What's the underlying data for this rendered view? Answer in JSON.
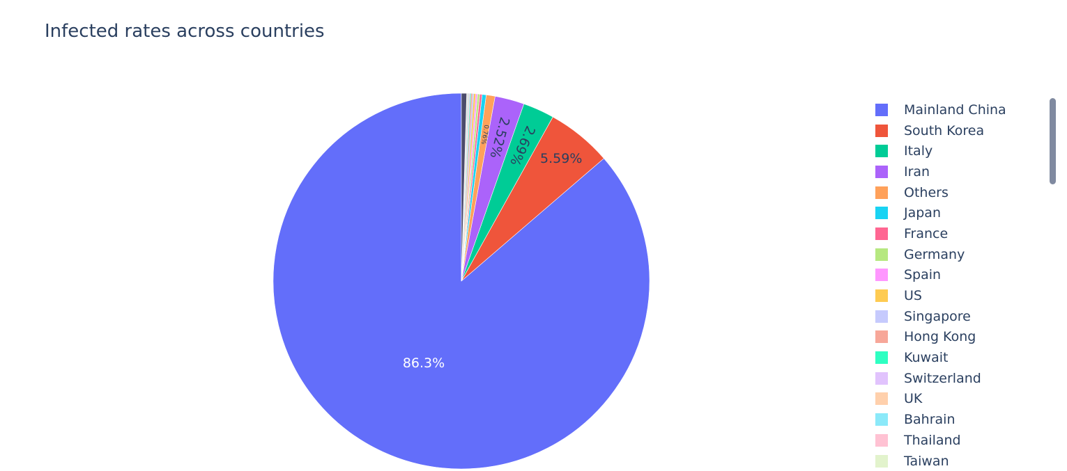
{
  "title": "Infected rates across countries",
  "chart_data": {
    "type": "pie",
    "title": "Infected rates across countries",
    "slices": [
      {
        "label": "Mainland China",
        "percent": 86.3,
        "color": "#636efa",
        "text": "86.3%"
      },
      {
        "label": "South Korea",
        "percent": 5.59,
        "color": "#ef553b",
        "text": "5.59%"
      },
      {
        "label": "Italy",
        "percent": 2.69,
        "color": "#00cc96",
        "text": "2.69%"
      },
      {
        "label": "Iran",
        "percent": 2.52,
        "color": "#ab63fa",
        "text": "2.52%"
      },
      {
        "label": "Others",
        "percent": 0.76,
        "color": "#ffa15a",
        "text": "0.76%"
      },
      {
        "label": "Japan",
        "percent": 0.35,
        "color": "#19d3f3",
        "text": ""
      },
      {
        "label": "France",
        "percent": 0.2,
        "color": "#ff6692",
        "text": ""
      },
      {
        "label": "Germany",
        "percent": 0.19,
        "color": "#b6e880",
        "text": ""
      },
      {
        "label": "Spain",
        "percent": 0.16,
        "color": "#ff97ff",
        "text": ""
      },
      {
        "label": "US",
        "percent": 0.15,
        "color": "#fecb52",
        "text": ""
      },
      {
        "label": "Singapore",
        "percent": 0.13,
        "color": "#c6cafd",
        "text": ""
      },
      {
        "label": "Hong Kong",
        "percent": 0.12,
        "color": "#f7a799",
        "text": ""
      },
      {
        "label": "Kuwait",
        "percent": 0.07,
        "color": "#2effc2",
        "text": ""
      },
      {
        "label": "Switzerland",
        "percent": 0.07,
        "color": "#e1c3fd",
        "text": ""
      },
      {
        "label": "UK",
        "percent": 0.06,
        "color": "#ffd0ac",
        "text": ""
      },
      {
        "label": "Bahrain",
        "percent": 0.06,
        "color": "#8be9f9",
        "text": ""
      },
      {
        "label": "Thailand",
        "percent": 0.05,
        "color": "#ffc2d3",
        "text": ""
      },
      {
        "label": "Taiwan",
        "percent": 0.05,
        "color": "#e2f3cc",
        "text": ""
      },
      {
        "label": "",
        "percent": 0.45,
        "color": "#4b4b6b",
        "text": ""
      }
    ],
    "legend": {
      "position": "right",
      "scrollable": true
    }
  }
}
